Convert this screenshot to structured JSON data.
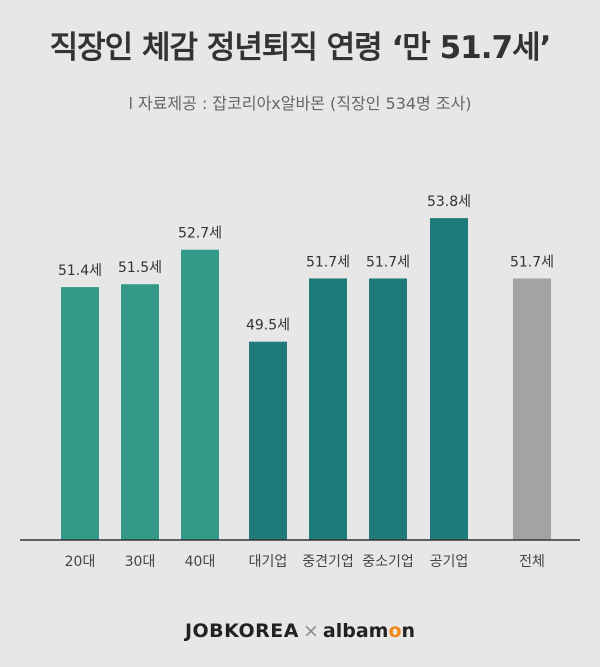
{
  "header": {
    "title": "직장인 체감 정년퇴직 연령 ‘만 51.7세’",
    "subtitle": "l 자료제공 : 잡코리아x알바몬 (직장인  534명 조사)"
  },
  "footer": {
    "brand_left": "JOBKOREA",
    "separator": "×",
    "brand_right_a": "albam",
    "brand_right_o": "o",
    "brand_right_b": "n"
  },
  "colors": {
    "age_groups": "#35998a",
    "company_types": "#1f7a7c",
    "overall": "#a3a3a3",
    "background": "#e7e7e7"
  },
  "chart_data": {
    "type": "bar",
    "title": "직장인 체감 정년퇴직 연령 ‘만 51.7세’",
    "xlabel": "",
    "ylabel": "",
    "unit": "세",
    "categories": [
      "20대",
      "30대",
      "40대",
      "대기업",
      "중견기업",
      "중소기업",
      "공기업",
      "전체"
    ],
    "values": [
      51.4,
      51.5,
      52.7,
      49.5,
      51.7,
      51.7,
      53.8,
      51.7
    ],
    "labels": [
      "51.4세",
      "51.5세",
      "52.7세",
      "49.5세",
      "51.7세",
      "51.7세",
      "53.8세",
      "51.7세"
    ],
    "groups": [
      "age_groups",
      "age_groups",
      "age_groups",
      "company_types",
      "company_types",
      "company_types",
      "company_types",
      "overall"
    ],
    "ylim": [
      42.6,
      54.5
    ],
    "grid": false,
    "legend": "none"
  }
}
